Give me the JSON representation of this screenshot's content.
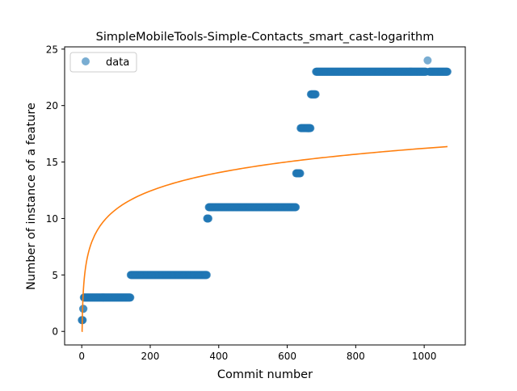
{
  "chart_data": {
    "type": "scatter",
    "title": "SimpleMobileTools-Simple-Contacts_smart_cast-logarithm",
    "xlabel": "Commit number",
    "ylabel": "Number of instance of a feature",
    "xlim": [
      -50,
      1120
    ],
    "ylim": [
      -1.2,
      25.2
    ],
    "xticks": [
      0,
      200,
      400,
      600,
      800,
      1000
    ],
    "yticks": [
      0,
      5,
      10,
      15,
      20,
      25
    ],
    "grid": false,
    "legend": {
      "position": "top-left",
      "entries": [
        "data"
      ]
    },
    "series": [
      {
        "name": "data",
        "kind": "scatter",
        "color": "#1f77b4",
        "segments": [
          {
            "x_start": 0,
            "x_end": 3,
            "y": 1
          },
          {
            "x_start": 4,
            "x_end": 5,
            "y": 2
          },
          {
            "x_start": 6,
            "x_end": 142,
            "y": 3
          },
          {
            "x_start": 143,
            "x_end": 365,
            "y": 5
          },
          {
            "x_start": 366,
            "x_end": 370,
            "y": 10
          },
          {
            "x_start": 371,
            "x_end": 625,
            "y": 11
          },
          {
            "x_start": 626,
            "x_end": 638,
            "y": 14
          },
          {
            "x_start": 639,
            "x_end": 668,
            "y": 18
          },
          {
            "x_start": 669,
            "x_end": 683,
            "y": 21
          },
          {
            "x_start": 684,
            "x_end": 1005,
            "y": 23
          },
          {
            "x_start": 1010,
            "x_end": 1010,
            "y": 24
          },
          {
            "x_start": 1015,
            "x_end": 1068,
            "y": 23
          }
        ]
      },
      {
        "name": "",
        "kind": "line",
        "color": "#ff7f0e",
        "fit": {
          "form": "a + b*ln(x)",
          "a": 0.0,
          "b": 2.347
        },
        "x_range": [
          1,
          1068
        ]
      }
    ]
  }
}
